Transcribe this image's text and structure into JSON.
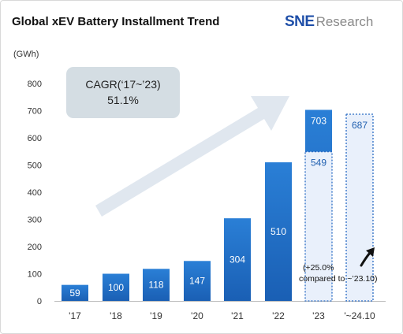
{
  "title": "Global xEV Battery Installment Trend",
  "logo": {
    "brand": "SNE",
    "name": "Research"
  },
  "annotations": {
    "cagr_line1": "CAGR(‘17~’23)",
    "cagr_line2": "51.1%",
    "note_line1": "(+25.0%",
    "note_line2": "compared to ~’23.10)"
  },
  "colors": {
    "bar_solid": "#1f6ec8",
    "bar_dashed_fill": "#e9f0fb",
    "bar_dashed_stroke": "#2b6cc4",
    "callout_box": "#d4dde3",
    "arrow": "#dbe3ec"
  },
  "chart_data": {
    "type": "bar",
    "ylabel": "(GWh)",
    "ylim": [
      0,
      800
    ],
    "yticks": [
      0,
      100,
      200,
      300,
      400,
      500,
      600,
      700,
      800
    ],
    "categories": [
      "'17",
      "'18",
      "'19",
      "'20",
      "'21",
      "'22",
      "'23",
      "'~24.10"
    ],
    "values": [
      59,
      100,
      118,
      147,
      304,
      510,
      703,
      null
    ],
    "partial": {
      "'23": 549,
      "'~24.10": 687
    },
    "grid": false,
    "legend": "none"
  }
}
